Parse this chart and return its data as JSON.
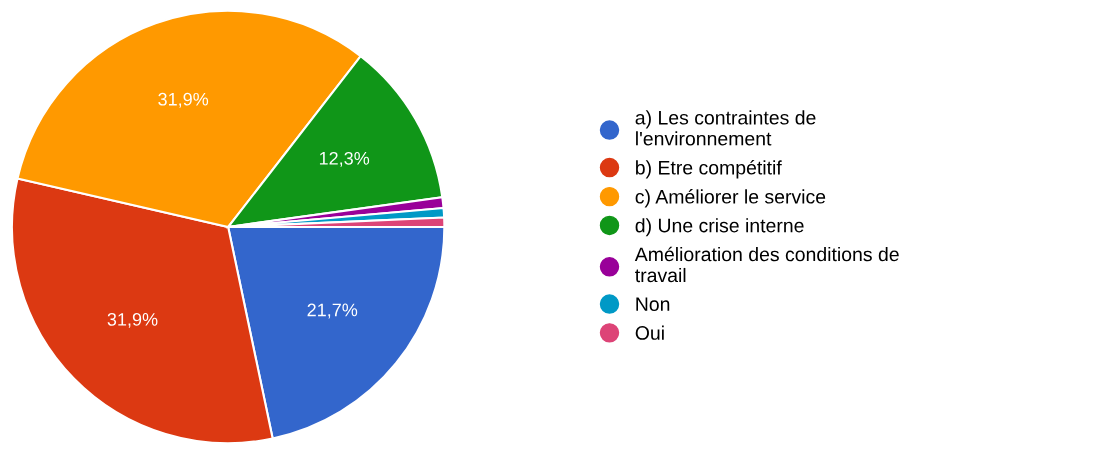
{
  "chart_data": {
    "type": "pie",
    "categories": [
      "a) Les contraintes de l'environnement",
      "b) Etre compétitif",
      "c) Améliorer le service",
      "d) Une crise interne",
      "Amélioration des conditions de travail",
      "Non",
      "Oui"
    ],
    "values": [
      21.7,
      31.9,
      31.9,
      12.3,
      0.8,
      0.7,
      0.7
    ],
    "value_labels": [
      "21,7%",
      "31,9%",
      "31,9%",
      "12,3%",
      null,
      null,
      null
    ],
    "colors": [
      "#3366cc",
      "#dc3912",
      "#ff9900",
      "#109618",
      "#990099",
      "#0099c6",
      "#dd4477"
    ],
    "legend": "right"
  }
}
